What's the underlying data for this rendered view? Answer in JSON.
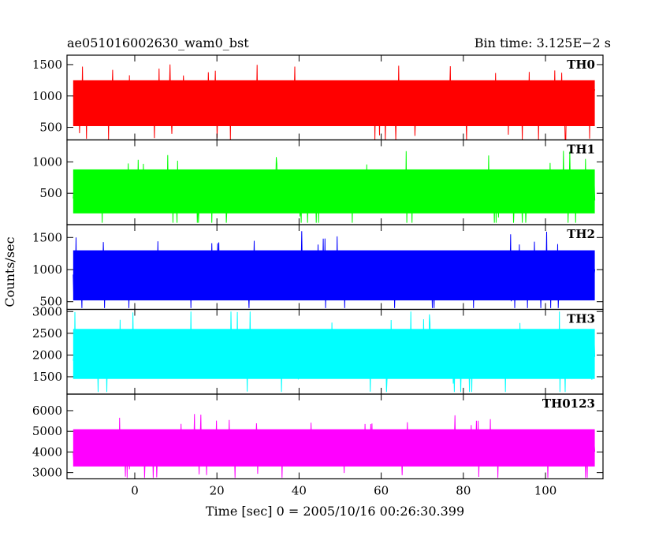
{
  "header": {
    "object_title": "ae051016002630_wam0_bst",
    "bin_time": "Bin time: 3.125E−2 s"
  },
  "chart_data": {
    "type": "line",
    "xlabel": "Time [sec] 0 = 2005/10/16 00:26:30.399",
    "ylabel": "Counts/sec",
    "xlim": [
      -16.5,
      114
    ],
    "x_range": [
      -15,
      112
    ],
    "x_ticks": [
      0,
      20,
      40,
      60,
      80,
      100
    ],
    "x_tick_labels": [
      "0",
      "20",
      "40",
      "60",
      "80",
      "100"
    ],
    "panels": [
      {
        "name": "TH0",
        "color": "#ff0000",
        "ylim": [
          300,
          1650
        ],
        "y_ticks": [
          500,
          1000,
          1500
        ],
        "y_tick_labels": [
          "500",
          "1000",
          "1500"
        ],
        "mean": 880,
        "band_low": 520,
        "band_high": 1250,
        "min": 300,
        "max": 1620
      },
      {
        "name": "TH1",
        "color": "#00ff00",
        "ylim": [
          0,
          1350
        ],
        "y_ticks": [
          500,
          1000
        ],
        "y_tick_labels": [
          "500",
          "1000"
        ],
        "mean": 500,
        "band_low": 180,
        "band_high": 880,
        "min": 30,
        "max": 1320
      },
      {
        "name": "TH2",
        "color": "#0000ff",
        "ylim": [
          380,
          1700
        ],
        "y_ticks": [
          500,
          1000,
          1500
        ],
        "y_tick_labels": [
          "500",
          "1000",
          "1500"
        ],
        "mean": 880,
        "band_low": 520,
        "band_high": 1300,
        "min": 400,
        "max": 1700
      },
      {
        "name": "TH3",
        "color": "#00ffff",
        "ylim": [
          1100,
          3050
        ],
        "y_ticks": [
          1500,
          2000,
          2500,
          3000
        ],
        "y_tick_labels": [
          "1500",
          "2000",
          "2500",
          "3000"
        ],
        "mean": 1950,
        "band_low": 1450,
        "band_high": 2600,
        "min": 1150,
        "max": 3000
      },
      {
        "name": "TH0123",
        "color": "#ff00ff",
        "ylim": [
          2700,
          6800
        ],
        "y_ticks": [
          3000,
          4000,
          5000,
          6000
        ],
        "y_tick_labels": [
          "3000",
          "4000",
          "5000",
          "6000"
        ],
        "mean": 4150,
        "band_low": 3300,
        "band_high": 5100,
        "min": 2750,
        "max": 6700
      }
    ],
    "grid": false,
    "legend": "panel labels at top-right of each panel"
  }
}
